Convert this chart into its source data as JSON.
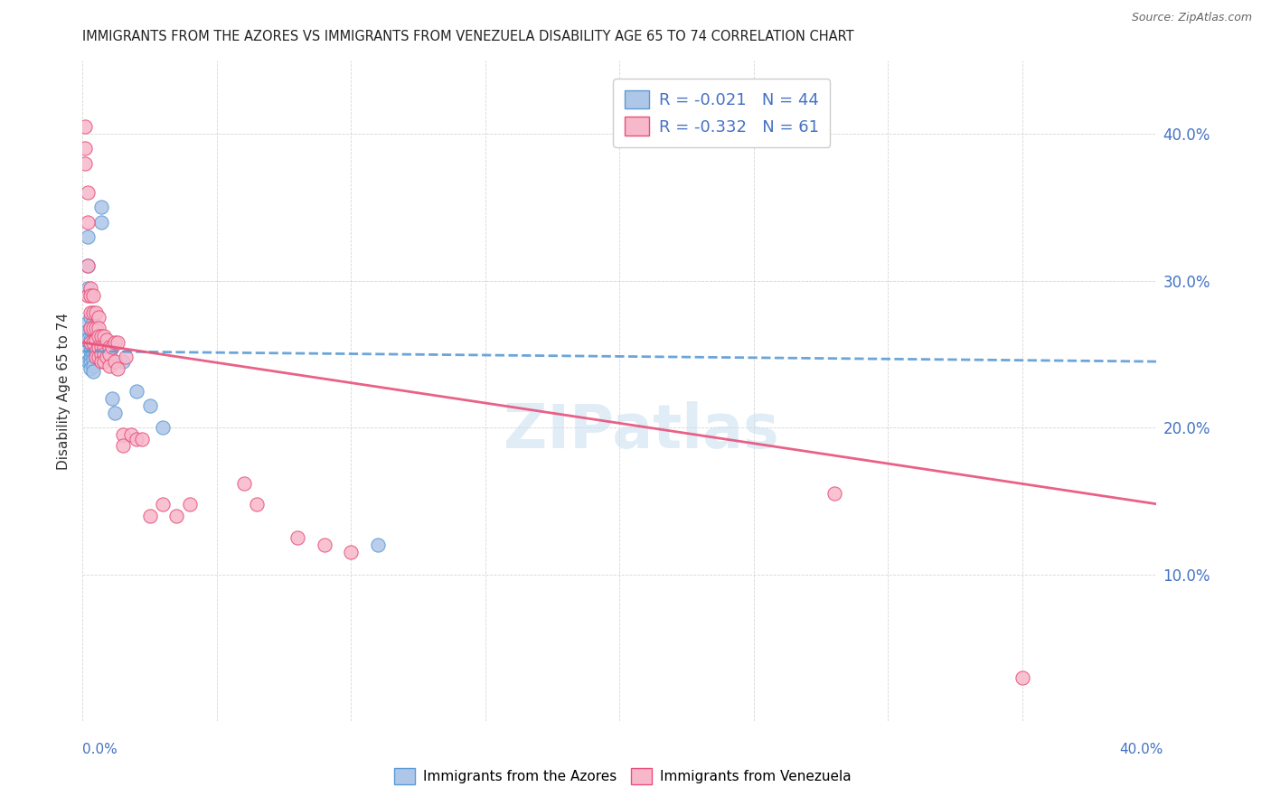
{
  "title": "IMMIGRANTS FROM THE AZORES VS IMMIGRANTS FROM VENEZUELA DISABILITY AGE 65 TO 74 CORRELATION CHART",
  "source": "Source: ZipAtlas.com",
  "ylabel": "Disability Age 65 to 74",
  "azores_R": -0.021,
  "azores_N": 44,
  "venezuela_R": -0.332,
  "venezuela_N": 61,
  "azores_color": "#aec6e8",
  "azores_edge_color": "#5b9bd5",
  "venezuela_color": "#f7b8cb",
  "venezuela_edge_color": "#e8507a",
  "azores_line_color": "#5b9bd5",
  "venezuela_line_color": "#e8507a",
  "watermark": "ZIPatlas",
  "azores_points_x": [
    0.001,
    0.001,
    0.001,
    0.002,
    0.002,
    0.002,
    0.002,
    0.002,
    0.003,
    0.003,
    0.003,
    0.003,
    0.003,
    0.003,
    0.003,
    0.003,
    0.003,
    0.004,
    0.004,
    0.004,
    0.004,
    0.004,
    0.004,
    0.004,
    0.004,
    0.005,
    0.005,
    0.005,
    0.005,
    0.005,
    0.006,
    0.006,
    0.007,
    0.007,
    0.008,
    0.009,
    0.01,
    0.011,
    0.012,
    0.015,
    0.02,
    0.025,
    0.03,
    0.11
  ],
  "azores_points_y": [
    0.27,
    0.265,
    0.26,
    0.33,
    0.31,
    0.295,
    0.26,
    0.245,
    0.275,
    0.268,
    0.26,
    0.255,
    0.252,
    0.248,
    0.246,
    0.244,
    0.24,
    0.272,
    0.265,
    0.26,
    0.255,
    0.25,
    0.246,
    0.242,
    0.238,
    0.268,
    0.262,
    0.258,
    0.252,
    0.248,
    0.26,
    0.252,
    0.35,
    0.34,
    0.255,
    0.255,
    0.252,
    0.22,
    0.21,
    0.245,
    0.225,
    0.215,
    0.2,
    0.12
  ],
  "venezuela_points_x": [
    0.001,
    0.001,
    0.001,
    0.002,
    0.002,
    0.002,
    0.002,
    0.003,
    0.003,
    0.003,
    0.003,
    0.003,
    0.004,
    0.004,
    0.004,
    0.004,
    0.005,
    0.005,
    0.005,
    0.005,
    0.005,
    0.006,
    0.006,
    0.006,
    0.006,
    0.006,
    0.007,
    0.007,
    0.007,
    0.007,
    0.008,
    0.008,
    0.008,
    0.008,
    0.009,
    0.009,
    0.01,
    0.01,
    0.01,
    0.011,
    0.012,
    0.012,
    0.013,
    0.013,
    0.015,
    0.015,
    0.016,
    0.018,
    0.02,
    0.022,
    0.025,
    0.03,
    0.035,
    0.04,
    0.06,
    0.065,
    0.08,
    0.09,
    0.1,
    0.28,
    0.35
  ],
  "venezuela_points_y": [
    0.405,
    0.39,
    0.38,
    0.36,
    0.34,
    0.31,
    0.29,
    0.295,
    0.29,
    0.278,
    0.268,
    0.258,
    0.29,
    0.278,
    0.268,
    0.258,
    0.278,
    0.268,
    0.26,
    0.252,
    0.248,
    0.275,
    0.268,
    0.262,
    0.255,
    0.248,
    0.262,
    0.255,
    0.25,
    0.245,
    0.262,
    0.255,
    0.25,
    0.245,
    0.26,
    0.248,
    0.255,
    0.25,
    0.242,
    0.255,
    0.258,
    0.245,
    0.258,
    0.24,
    0.195,
    0.188,
    0.248,
    0.195,
    0.192,
    0.192,
    0.14,
    0.148,
    0.14,
    0.148,
    0.162,
    0.148,
    0.125,
    0.12,
    0.115,
    0.155,
    0.03
  ],
  "xlim": [
    0.0,
    0.4
  ],
  "ylim": [
    0.0,
    0.45
  ],
  "azores_trend_start_y": 0.252,
  "azores_trend_end_y": 0.245,
  "venezuela_trend_start_y": 0.258,
  "venezuela_trend_end_y": 0.148
}
